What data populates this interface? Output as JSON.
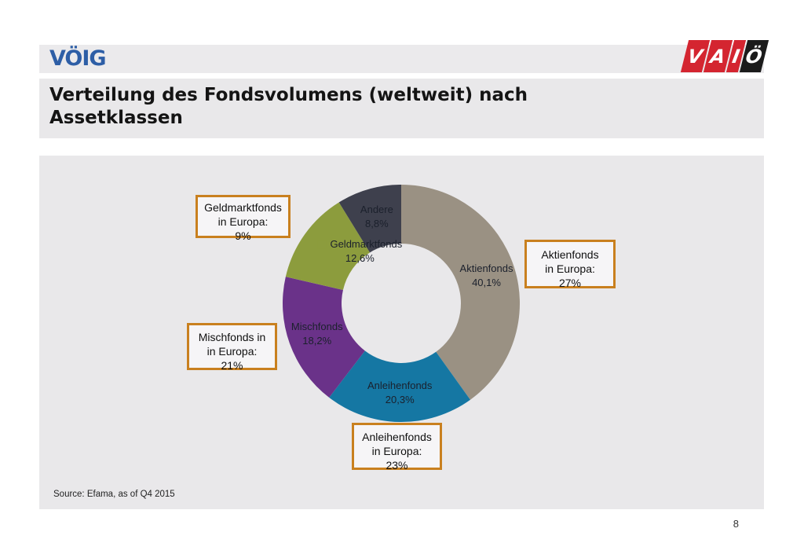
{
  "header": {
    "voig_logo_text": "VÖIG",
    "vaio_logo_letters": [
      "V",
      "A",
      "I",
      "Ö"
    ]
  },
  "title": {
    "full": "Verteilung des Fondsvolumens (weltweit) nach Assetklassen",
    "line1": "Verteilung des Fondsvolumens (weltweit) nach",
    "line2": "Assetklassen"
  },
  "chart_data": {
    "type": "pie",
    "subtype": "donut",
    "title": "Verteilung des Fondsvolumens (weltweit) nach Assetklassen",
    "unit": "%",
    "start_angle_deg": 0,
    "direction": "clockwise",
    "legend_position": "none",
    "slices": [
      {
        "label": "Aktienfonds",
        "value": 40.1,
        "display": "40,1%",
        "color": "#9a9183"
      },
      {
        "label": "Anleihenfonds",
        "value": 20.3,
        "display": "20,3%",
        "color": "#1577a3"
      },
      {
        "label": "Mischfonds",
        "value": 18.2,
        "display": "18,2%",
        "color": "#6a3289"
      },
      {
        "label": "Geldmarktfonds",
        "value": 12.6,
        "display": "12,6%",
        "color": "#8c9c3d",
        "has_marker": true
      },
      {
        "label": "Andere",
        "value": 8.8,
        "display": "8,8%",
        "color": "#3e404d"
      }
    ],
    "annotations": [
      {
        "refers_to": "Geldmarktfonds",
        "europe_value": 9,
        "lines": [
          "Geldmarktfonds",
          "in Europa:",
          "9%"
        ]
      },
      {
        "refers_to": "Aktienfonds",
        "europe_value": 27,
        "lines": [
          "Aktienfonds",
          "in Europa:",
          "27%"
        ]
      },
      {
        "refers_to": "Mischfonds",
        "europe_value": 21,
        "lines": [
          "Mischfonds in",
          "in Europa:",
          "21%"
        ]
      },
      {
        "refers_to": "Anleihenfonds",
        "europe_value": 23,
        "lines": [
          "Anleihenfonds",
          "in Europa:",
          "23%"
        ]
      }
    ]
  },
  "source": "Source: Efama, as of Q4 2015",
  "page_number": "8",
  "colors": {
    "band_background": "#e9e8ea",
    "callout_border": "#c9801f",
    "voig_blue": "#2d5ea6",
    "vaio_red": "#d42530",
    "vaio_black": "#1b1b1b"
  }
}
